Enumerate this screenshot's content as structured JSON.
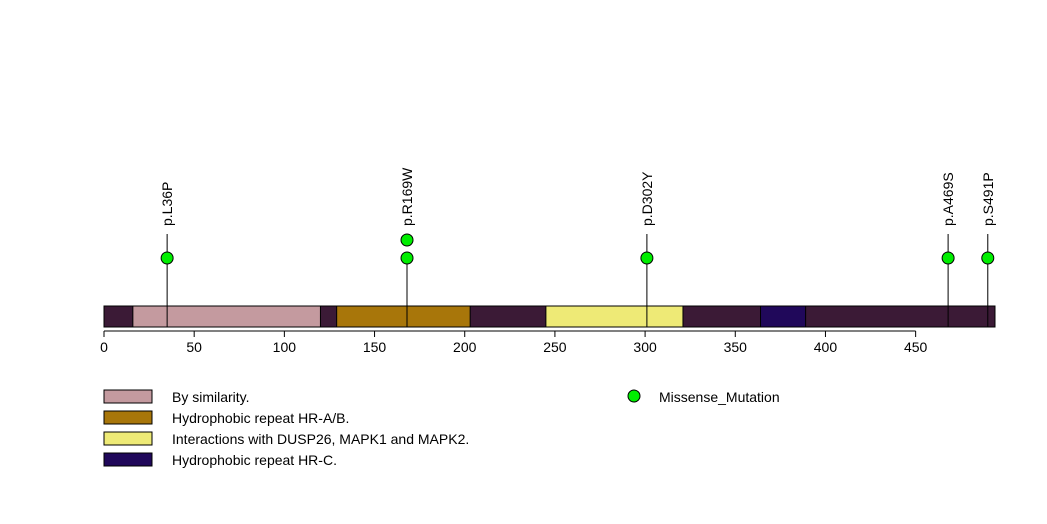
{
  "chart_data": {
    "type": "lollipop",
    "protein_length": 494,
    "xlim": [
      0,
      494
    ],
    "ticks": [
      0,
      50,
      100,
      150,
      200,
      250,
      300,
      350,
      400,
      450
    ],
    "backbone_color": "#3b1a36",
    "domains": [
      {
        "start": 16,
        "end": 120,
        "color": "#c49a9f"
      },
      {
        "start": 129,
        "end": 203,
        "color": "#a8760a"
      },
      {
        "start": 245,
        "end": 321,
        "color": "#eeea76"
      },
      {
        "start": 364,
        "end": 389,
        "color": "#20085a"
      }
    ],
    "mutations": [
      {
        "label": "p.L36P",
        "position": 35,
        "count": 1
      },
      {
        "label": "p.R169W",
        "position": 168,
        "count": 2
      },
      {
        "label": "p.D302Y",
        "position": 301,
        "count": 1
      },
      {
        "label": "p.A469S",
        "position": 468,
        "count": 1
      },
      {
        "label": "p.S491P",
        "position": 490,
        "count": 1
      }
    ],
    "mutation_color": "#00ee00",
    "legend": {
      "domains": [
        {
          "label": "By similarity.",
          "color": "#c49a9f"
        },
        {
          "label": "Hydrophobic repeat HR-A/B.",
          "color": "#a8760a"
        },
        {
          "label": "Interactions with DUSP26, MAPK1 and MAPK2.",
          "color": "#eeea76"
        },
        {
          "label": "Hydrophobic repeat HR-C.",
          "color": "#20085a"
        }
      ],
      "mutation_types": [
        {
          "label": "Missense_Mutation",
          "color": "#00ee00"
        }
      ]
    }
  }
}
